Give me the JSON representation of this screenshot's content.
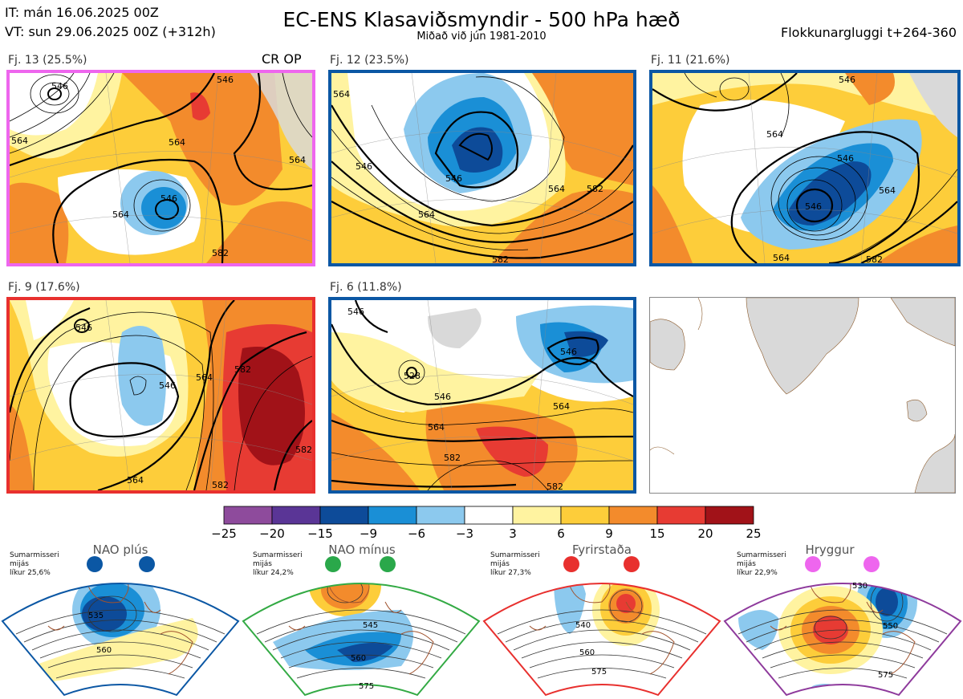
{
  "header": {
    "it": "IT: mán 16.06.2025 00Z",
    "vt": "VT: sun 29.06.2025 00Z  (+312h)",
    "title": "EC-ENS Klasaviðsmyndir - 500 hPa hæð",
    "subtitle": "Miðað við jún 1981-2010",
    "window": "Flokkunargluggi t+264-360"
  },
  "panels": [
    {
      "label": "Fj. 13 (25.5%)",
      "marker": "CR OP",
      "border": "#ee66ee",
      "contours": [
        "564",
        "564",
        "564",
        "546",
        "546",
        "546",
        "582",
        "564"
      ]
    },
    {
      "label": "Fj. 12 (23.5%)",
      "marker": "",
      "border": "#0b57a4",
      "contours": [
        "564",
        "546",
        "546",
        "564",
        "582",
        "564",
        "582"
      ]
    },
    {
      "label": "Fj. 11 (21.6%)",
      "marker": "",
      "border": "#0b57a4",
      "contours": [
        "546",
        "564",
        "546",
        "546",
        "564",
        "564",
        "582"
      ]
    },
    {
      "label": "Fj. 9 (17.6%)",
      "marker": "",
      "border": "#e8302e",
      "contours": [
        "546",
        "546",
        "564",
        "582",
        "582",
        "582",
        "564"
      ]
    },
    {
      "label": "Fj. 6 (11.8%)",
      "marker": "",
      "border": "#0b57a4",
      "contours": [
        "546",
        "528",
        "546",
        "546",
        "564",
        "564",
        "582",
        "582"
      ]
    }
  ],
  "colorbar": {
    "labels": [
      "−25",
      "−20",
      "−15",
      "−9",
      "−6",
      "−3",
      "3",
      "6",
      "9",
      "15",
      "20",
      "25"
    ],
    "colors": [
      "#8e4b9c",
      "#5a3596",
      "#0d4b99",
      "#1a8fd6",
      "#8cc9ee",
      "#ffffff",
      "#fff3a0",
      "#fdcd3a",
      "#f38b2c",
      "#e73b33",
      "#a11218"
    ]
  },
  "regimes": [
    {
      "name": "NAO plús",
      "stats": [
        "Sumarmisseri",
        "mijás",
        "líkur 25,6%"
      ],
      "border": "#0b57a4",
      "dot_color": "#0b57a4",
      "contours": [
        "535",
        "560"
      ]
    },
    {
      "name": "NAO mínus",
      "stats": [
        "Sumarmisseri",
        "mijás",
        "líkur 24,2%"
      ],
      "border": "#33aa44",
      "dot_color": "#2aa84a",
      "contours": [
        "545",
        "560",
        "575"
      ]
    },
    {
      "name": "Fyrirstaða",
      "stats": [
        "Sumarmisseri",
        "mijás",
        "líkur 27,3%"
      ],
      "border": "#e8302e",
      "dot_color": "#e8302e",
      "contours": [
        "540",
        "560",
        "575"
      ]
    },
    {
      "name": "Hryggur",
      "stats": [
        "Sumarmisseri",
        "mijás",
        "líkur 22,9%"
      ],
      "border": "#8e3a9c",
      "dot_color": "#ee66ee",
      "contours": [
        "530",
        "550",
        "575"
      ]
    }
  ]
}
